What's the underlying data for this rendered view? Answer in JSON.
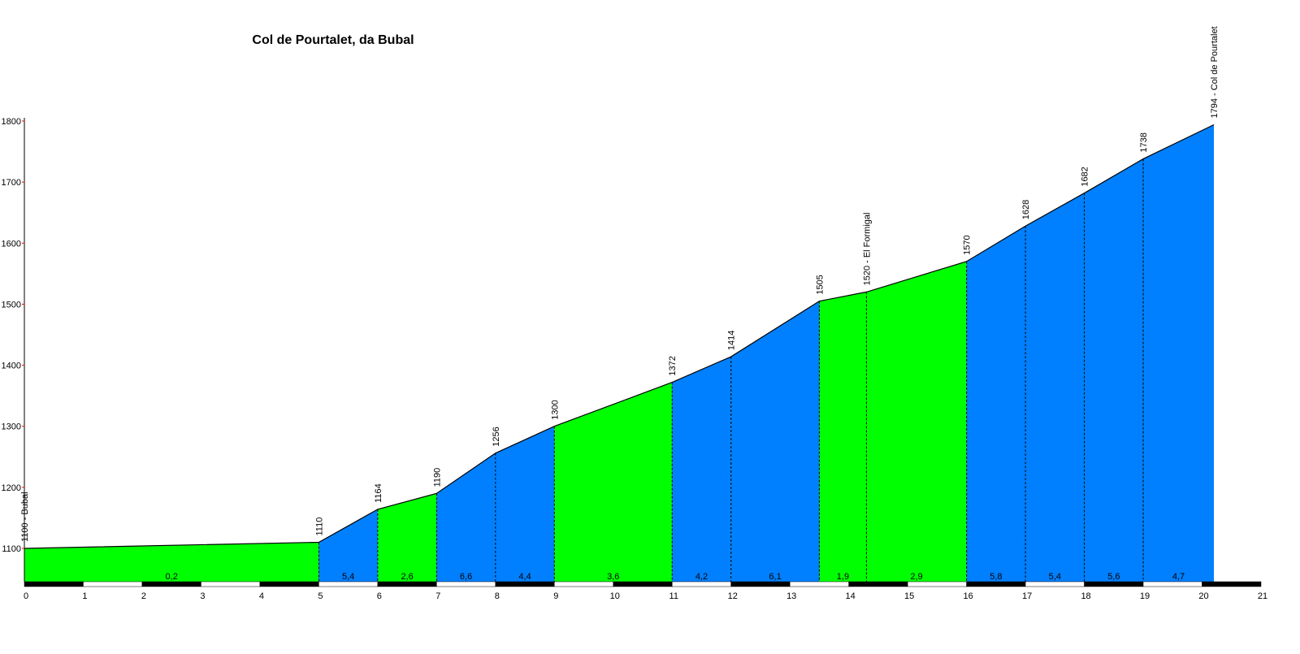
{
  "chart_data": {
    "type": "area",
    "title": "Col de Pourtalet, da Bubal",
    "xlabel": "",
    "ylabel": "",
    "xlim": [
      0,
      21
    ],
    "ylim": [
      1045,
      1800
    ],
    "x_ticks": [
      0,
      1,
      2,
      3,
      4,
      5,
      6,
      7,
      8,
      9,
      10,
      11,
      12,
      13,
      14,
      15,
      16,
      17,
      18,
      19,
      20,
      21
    ],
    "y_ticks": [
      1100,
      1200,
      1300,
      1400,
      1500,
      1600,
      1700,
      1800
    ],
    "grid": false,
    "points": [
      {
        "km": 0,
        "alt": 1100,
        "label": "1100 - Bubal"
      },
      {
        "km": 5,
        "alt": 1110,
        "label": "1110"
      },
      {
        "km": 6,
        "alt": 1164,
        "label": "1164"
      },
      {
        "km": 7,
        "alt": 1190,
        "label": "1190"
      },
      {
        "km": 8,
        "alt": 1256,
        "label": "1256"
      },
      {
        "km": 9,
        "alt": 1300,
        "label": "1300"
      },
      {
        "km": 11,
        "alt": 1372,
        "label": "1372"
      },
      {
        "km": 12,
        "alt": 1414,
        "label": "1414"
      },
      {
        "km": 13.5,
        "alt": 1505,
        "label": "1505"
      },
      {
        "km": 14.3,
        "alt": 1520,
        "label": "1520 - El Formigal"
      },
      {
        "km": 16,
        "alt": 1570,
        "label": "1570"
      },
      {
        "km": 17,
        "alt": 1628,
        "label": "1628"
      },
      {
        "km": 18,
        "alt": 1682,
        "label": "1682"
      },
      {
        "km": 19,
        "alt": 1738,
        "label": "1738"
      },
      {
        "km": 20.2,
        "alt": 1794,
        "label": "1794 - Col de Pourtalet"
      }
    ],
    "segments": [
      {
        "grade": "0,2",
        "color": "#00ff00"
      },
      {
        "grade": "5,4",
        "color": "#0080ff"
      },
      {
        "grade": "2,6",
        "color": "#00ff00"
      },
      {
        "grade": "6,6",
        "color": "#0080ff"
      },
      {
        "grade": "4,4",
        "color": "#0080ff"
      },
      {
        "grade": "3,6",
        "color": "#00ff00"
      },
      {
        "grade": "4,2",
        "color": "#0080ff"
      },
      {
        "grade": "6,1",
        "color": "#0080ff"
      },
      {
        "grade": "1,9",
        "color": "#00ff00"
      },
      {
        "grade": "2,9",
        "color": "#00ff00"
      },
      {
        "grade": "5,8",
        "color": "#0080ff"
      },
      {
        "grade": "5,4",
        "color": "#0080ff"
      },
      {
        "grade": "5,6",
        "color": "#0080ff"
      },
      {
        "grade": "4,7",
        "color": "#0080ff"
      }
    ]
  }
}
